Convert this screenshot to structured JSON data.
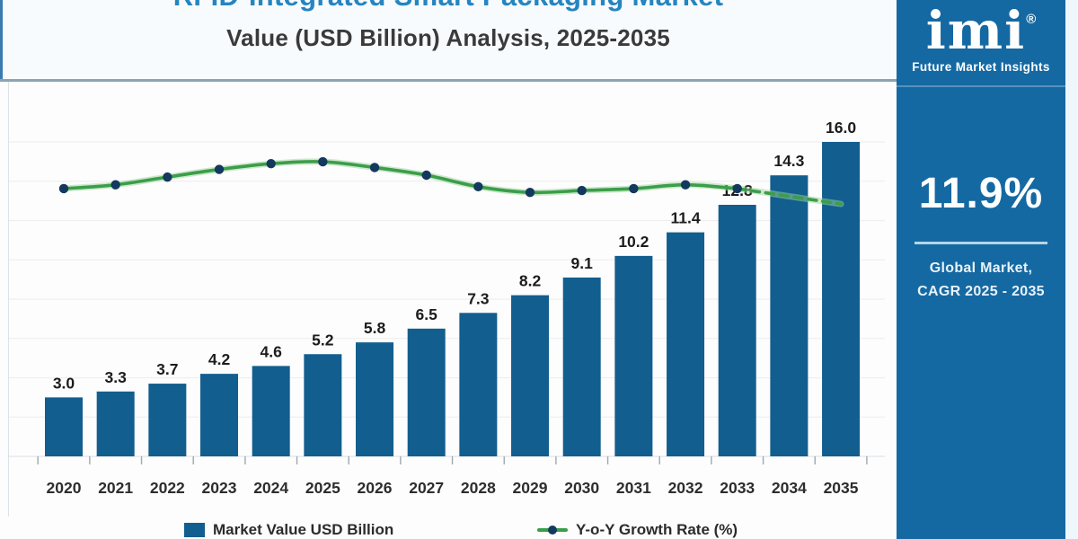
{
  "header": {
    "title_line1": "RFID-Integrated Smart Packaging Market",
    "title_line2": "Value (USD Billion) Analysis, 2025-2035"
  },
  "sidebar": {
    "logo_text": "imi",
    "registered_mark": "®",
    "logo_subtitle": "Future Market Insights",
    "cagr_value": "11.9%",
    "caption_line1": "Global Market,",
    "caption_line2": "CAGR 2025 - 2035"
  },
  "legend": {
    "bar_label": "Market Value USD Billion",
    "line_label": "Y-o-Y Growth Rate (%)"
  },
  "colors": {
    "bar": "#125E8F",
    "sidebar_bg": "#1569A2",
    "line_green": "#3B9E49",
    "line_halo": "#9FD49F",
    "marker_navy": "#14395E",
    "title_blue": "#2585C0",
    "left_accent": "#3A7CB0",
    "header_divider": "#8BA4B0",
    "gridline": "#EFEFEF",
    "tick": "#9FA9B0",
    "value_label": "#1C1C1C",
    "year_label": "#2D2D2D"
  },
  "chart_data": {
    "type": "bar",
    "title": "RFID-Integrated Smart Packaging Market Value (USD Billion) Analysis, 2025-2035",
    "categories": [
      "2020",
      "2021",
      "2022",
      "2023",
      "2024",
      "2025",
      "2026",
      "2027",
      "2028",
      "2029",
      "2030",
      "2031",
      "2032",
      "2033",
      "2034",
      "2035"
    ],
    "series": [
      {
        "name": "Market Value USD Billion",
        "type": "bar",
        "values": [
          3.0,
          3.3,
          3.7,
          4.2,
          4.6,
          5.2,
          5.8,
          6.5,
          7.3,
          8.2,
          9.1,
          10.2,
          11.4,
          12.8,
          14.3,
          16.0
        ],
        "value_labels": [
          "3.0",
          "3.3",
          "3.7",
          "4.2",
          "4.6",
          "5.2",
          "5.8",
          "6.5",
          "7.3",
          "8.2",
          "9.1",
          "10.2",
          "11.4",
          "12.8",
          "14.3",
          "16.0"
        ]
      },
      {
        "name": "Y-o-Y Growth Rate (%)",
        "type": "line",
        "estimated": true,
        "values": [
          11.8,
          12.0,
          12.4,
          12.8,
          13.1,
          13.2,
          12.9,
          12.5,
          11.9,
          11.6,
          11.7,
          11.8,
          12.0,
          11.8,
          11.4,
          11.0
        ],
        "dashed_from_index": 13,
        "markers_through_index": 13
      }
    ],
    "xlabel": "",
    "ylabel": "",
    "ylim": [
      0,
      16.5
    ],
    "grid": true,
    "gridline_step": 2,
    "legend_position": "bottom",
    "value_labels_shown": true
  }
}
